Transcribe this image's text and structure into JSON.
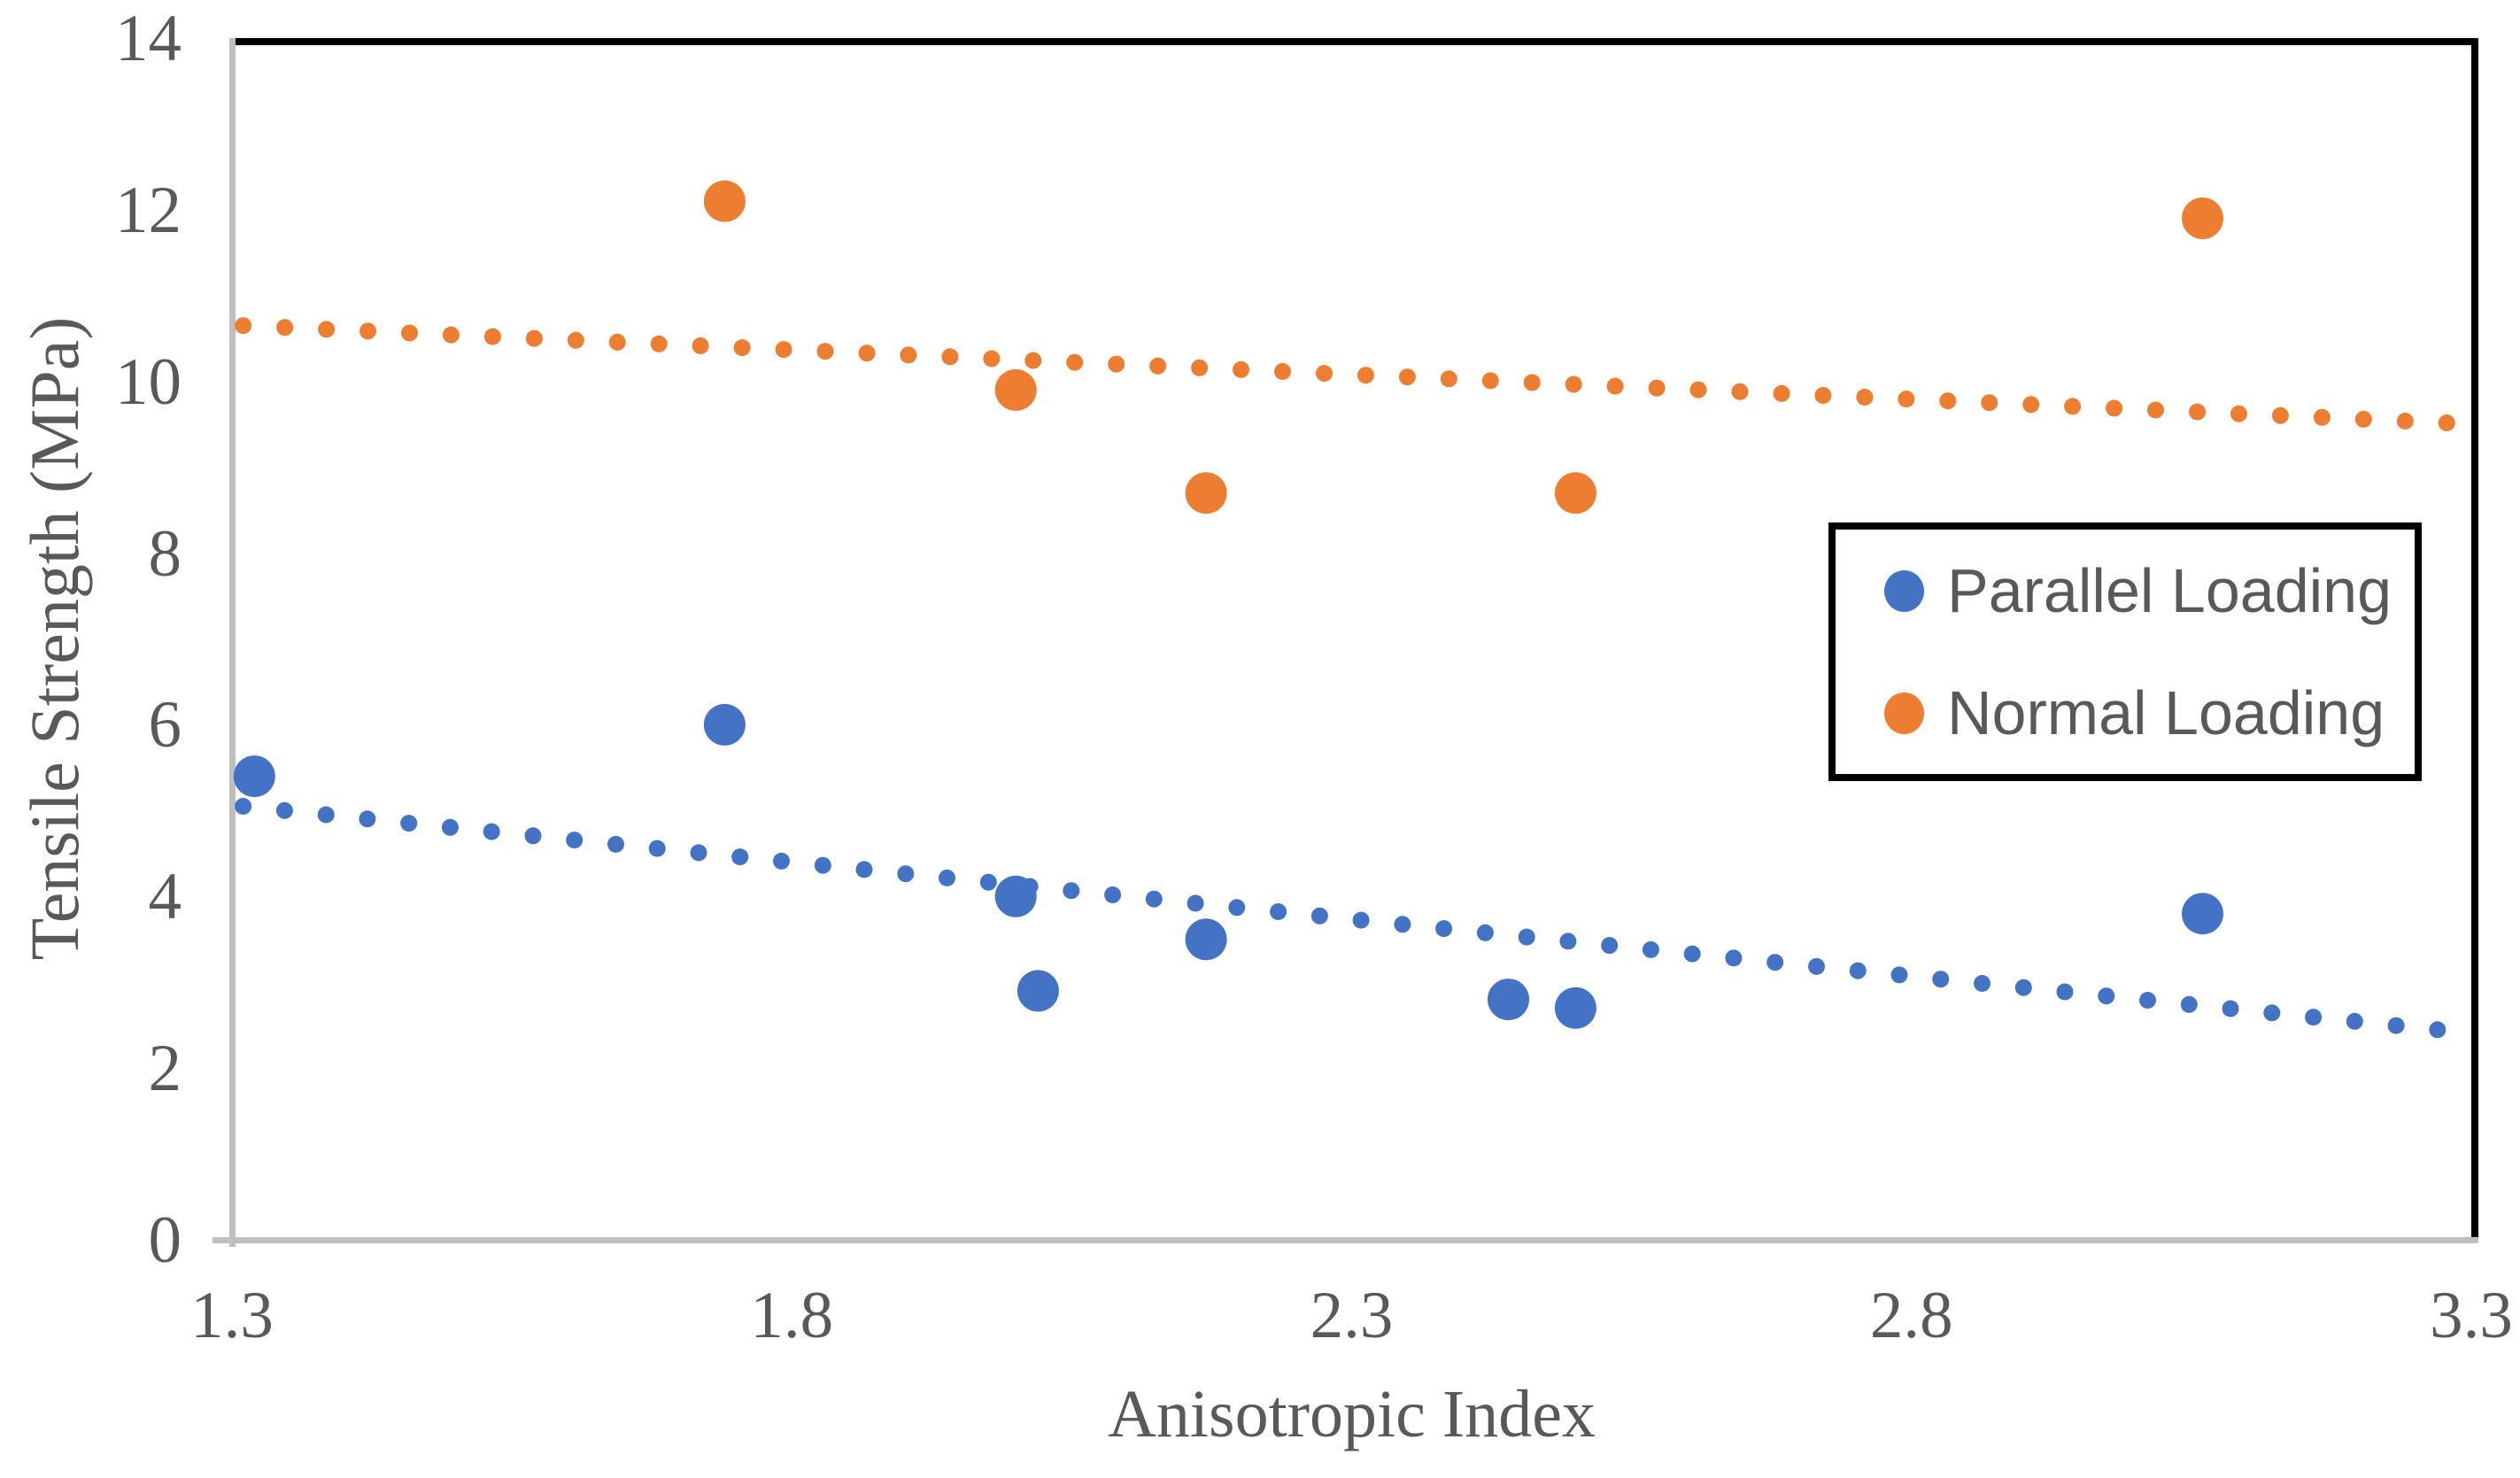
{
  "chart_data": {
    "type": "scatter",
    "title": "",
    "xlabel": "Anisotropic Index",
    "ylabel": "Tensile Strength (MPa)",
    "xlim": [
      1.3,
      3.3
    ],
    "ylim": [
      0,
      14
    ],
    "x_ticks": [
      "1.3",
      "1.8",
      "2.3",
      "2.8",
      "3.3"
    ],
    "x_tick_values": [
      1.3,
      1.8,
      2.3,
      2.8,
      3.3
    ],
    "y_ticks": [
      "0",
      "2",
      "4",
      "6",
      "8",
      "10",
      "12",
      "14"
    ],
    "y_tick_values": [
      0,
      2,
      4,
      6,
      8,
      10,
      12,
      14
    ],
    "grid": false,
    "legend_position": "inside-top-right",
    "series": [
      {
        "name": "Parallel Loading",
        "color": "#4472C4",
        "points": [
          [
            1.32,
            5.4
          ],
          [
            1.74,
            6.0
          ],
          [
            2.0,
            4.0
          ],
          [
            2.02,
            2.9
          ],
          [
            2.17,
            3.5
          ],
          [
            2.44,
            2.8
          ],
          [
            2.5,
            2.7
          ],
          [
            3.06,
            3.8
          ]
        ],
        "trendline": {
          "style": "dotted",
          "x1": 1.31,
          "y1": 5.05,
          "x2": 3.29,
          "y2": 2.42
        }
      },
      {
        "name": "Normal Loading",
        "color": "#ED7D31",
        "points": [
          [
            1.74,
            12.1
          ],
          [
            2.0,
            9.9
          ],
          [
            2.17,
            8.7
          ],
          [
            2.5,
            8.7
          ],
          [
            3.06,
            11.9
          ]
        ],
        "trendline": {
          "style": "dotted",
          "x1": 1.31,
          "y1": 10.65,
          "x2": 3.29,
          "y2": 9.51
        }
      }
    ]
  },
  "colors": {
    "plot_border": "#000000",
    "axis_line": "#BFBFBF",
    "tick_text": "#595959",
    "legend_border": "#000000",
    "background": "#FFFFFF"
  }
}
